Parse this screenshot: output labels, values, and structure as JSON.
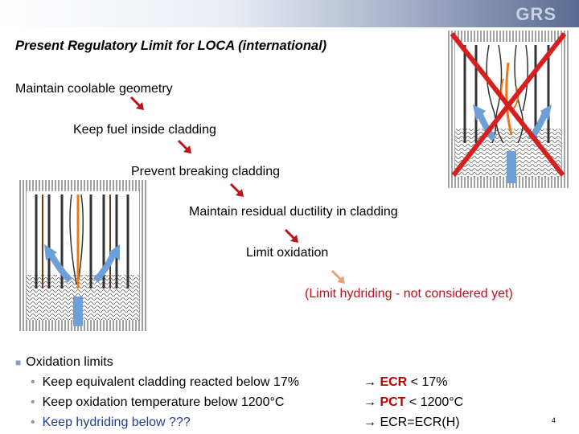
{
  "header": {
    "logo": "GRS"
  },
  "slide": {
    "title": "Present Regulatory Limit for LOCA (international)",
    "steps": [
      "Maintain coolable geometry",
      "Keep fuel inside cladding",
      "Prevent breaking cladding",
      "Maintain residual ductility in cladding",
      "Limit oxidation",
      "(Limit hydriding   - not considered yet)"
    ],
    "bullets": {
      "main": "Oxidation limits",
      "subs": [
        "Keep equivalent cladding reacted below 17%",
        "Keep oxidation temperature below 1200°C",
        "Keep hydriding below ???"
      ]
    },
    "criteria": [
      {
        "arrow": "→",
        "key": "ECR",
        "rest": " < 17%"
      },
      {
        "arrow": "→",
        "key": "PCT",
        "rest": " < 1200°C"
      },
      {
        "arrow": "→",
        "key": "",
        "rest": "ECR=ECR(H)"
      }
    ],
    "page_number": "4"
  },
  "colors": {
    "arrow_dark": "#c0101a",
    "arrow_light": "#e9a07a",
    "hydriding_text": "#c0101a",
    "coolant_arrow": "#6e9fd8",
    "rod_orange": "#e87a1a"
  },
  "icons": [
    "stepdown-arrow-icon",
    "fuel-bundle-intact-figure",
    "fuel-bundle-failed-figure",
    "red-cross-icon"
  ]
}
